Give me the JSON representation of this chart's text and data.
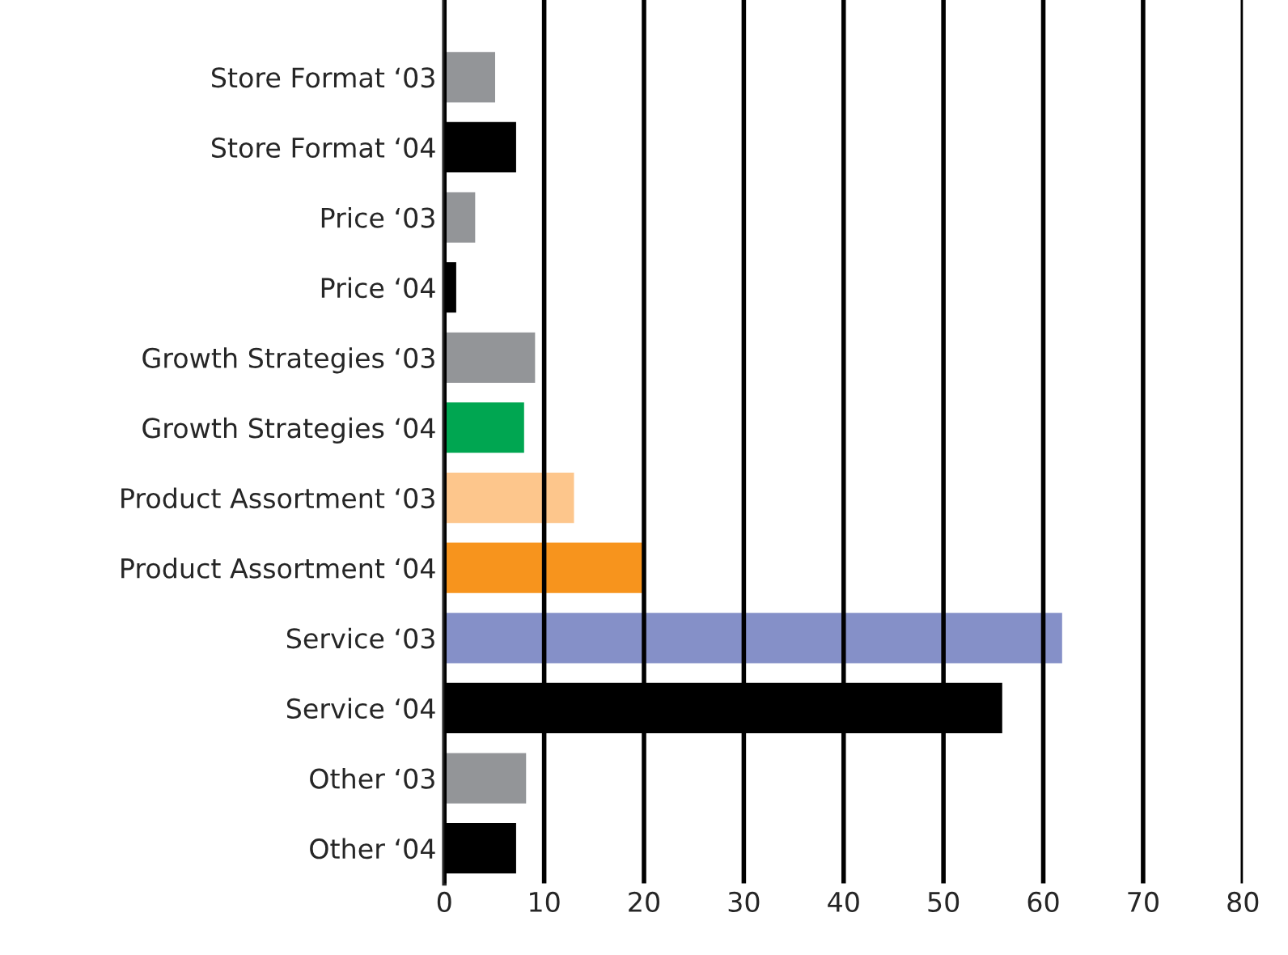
{
  "chart_data": {
    "type": "bar",
    "orientation": "horizontal",
    "categories": [
      "Store Format ‘03",
      "Store Format ‘04",
      "Price ‘03",
      "Price ‘04",
      "Growth Strategies ‘03",
      "Growth Strategies ‘04",
      "Product Assortment ‘03",
      "Product Assortment ‘04",
      "Service ‘03",
      "Service ‘04",
      "Other ‘03",
      "Other ‘04"
    ],
    "values": [
      5.2,
      7.3,
      3.2,
      1.3,
      9.2,
      8.1,
      13.1,
      20,
      62,
      56,
      8.3,
      7.3
    ],
    "colors": [
      "#939598",
      "#000000",
      "#939598",
      "#000000",
      "#939598",
      "#00a651",
      "#fdc68c",
      "#f7941d",
      "#8590c8",
      "#000000",
      "#939598",
      "#000000"
    ],
    "xlim": [
      0,
      80
    ],
    "xticks": [
      0,
      10,
      20,
      30,
      40,
      50,
      60,
      70,
      80
    ],
    "grid": "x"
  }
}
